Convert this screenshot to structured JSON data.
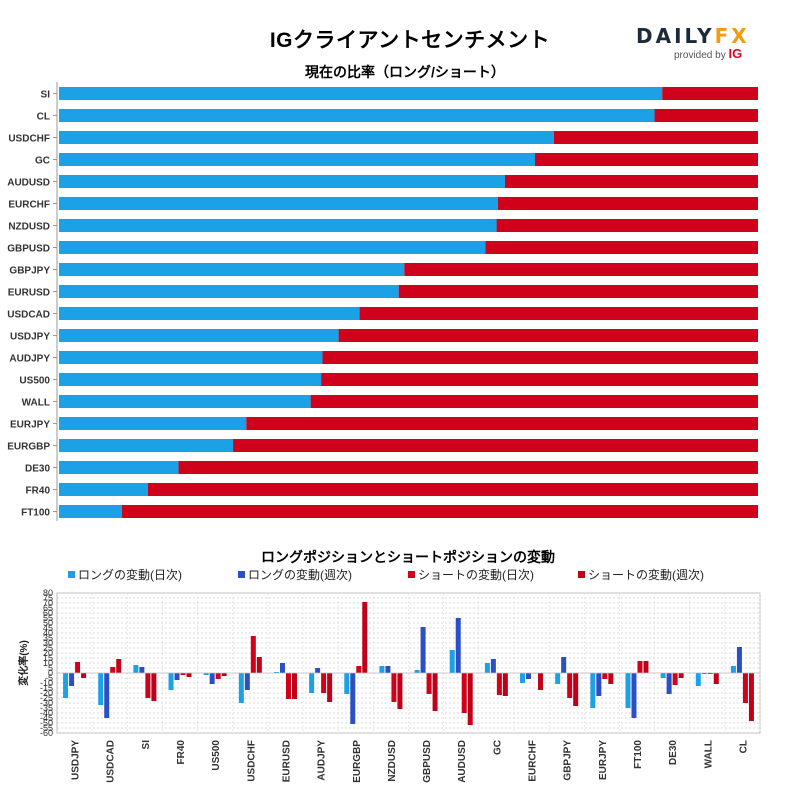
{
  "header": {
    "title": "IGクライアントセンチメント",
    "logo_word_a": "DAILY",
    "logo_word_b": "FX",
    "logo_provided": "provided by",
    "logo_ig": "IG"
  },
  "colors": {
    "long": "#1ca1e6",
    "short": "#d0021b",
    "long_weekly": "#2d4fc4",
    "short_weekly": "#c00018"
  },
  "chart_data": [
    {
      "type": "bar",
      "orientation": "horizontal-stacked",
      "title": "現在の比率（ロング/ショート）",
      "categories": [
        "SI",
        "CL",
        "USDCHF",
        "GC",
        "AUDUSD",
        "EURCHF",
        "NZDUSD",
        "GBPUSD",
        "GBPJPY",
        "EURUSD",
        "USDCAD",
        "USDJPY",
        "AUDJPY",
        "US500",
        "WALL",
        "EURJPY",
        "EURGBP",
        "DE30",
        "FR40",
        "FT100"
      ],
      "series": [
        {
          "name": "ロング",
          "values": [
            86.3,
            85.2,
            70.8,
            68.1,
            63.8,
            62.8,
            62.6,
            61.0,
            49.4,
            48.6,
            43.0,
            40.0,
            37.7,
            37.5,
            36.0,
            26.8,
            24.9,
            17.1,
            12.7,
            9.0
          ]
        },
        {
          "name": "ショート",
          "values": [
            13.7,
            14.8,
            29.2,
            31.9,
            36.2,
            37.2,
            37.4,
            39.0,
            50.6,
            51.4,
            57.0,
            60.0,
            62.3,
            62.5,
            64.0,
            73.2,
            75.1,
            82.9,
            87.3,
            91.0
          ]
        }
      ],
      "xlim": [
        0,
        100
      ]
    },
    {
      "type": "bar",
      "title": "ロングポジションとショートポジションの変動",
      "ylabel": "変化率(%)",
      "ylim": [
        -60,
        80
      ],
      "yticks": [
        80,
        75,
        70,
        65,
        60,
        55,
        50,
        45,
        40,
        35,
        30,
        25,
        20,
        15,
        10,
        5,
        0,
        -5,
        -10,
        -15,
        -20,
        -25,
        -30,
        -35,
        -40,
        -45,
        -50,
        -55,
        -60
      ],
      "categories": [
        "USDJPY",
        "USDCAD",
        "SI",
        "FR40",
        "US500",
        "USDCHF",
        "EURUSD",
        "AUDJPY",
        "EURGBP",
        "NZDUSD",
        "GBPUSD",
        "AUDUSD",
        "GC",
        "EURCHF",
        "GBPJPY",
        "EURJPY",
        "FT100",
        "DE30",
        "WALL",
        "CL"
      ],
      "series": [
        {
          "name": "ロングの変動(日次)",
          "values": [
            -25,
            -32,
            8,
            -17,
            -2,
            -30,
            1,
            -20,
            -21,
            7,
            3,
            23,
            10,
            -10,
            -11,
            -35,
            -35,
            -5,
            -13,
            7
          ]
        },
        {
          "name": "ロングの変動(週次)",
          "values": [
            -13,
            -45,
            6,
            -7,
            -11,
            -17,
            10,
            5,
            -51,
            7,
            46,
            55,
            14,
            -6,
            16,
            -23,
            -45,
            -21,
            -1,
            26
          ]
        },
        {
          "name": "ショートの変動(日次)",
          "values": [
            11,
            6,
            -25,
            -2,
            -6,
            37,
            -26,
            -20,
            7,
            -29,
            -21,
            -40,
            -22,
            0,
            -25,
            -6,
            12,
            -12,
            -1,
            -30
          ]
        },
        {
          "name": "ショートの変動(週次)",
          "values": [
            -5,
            14,
            -28,
            -4,
            -3,
            16,
            -26,
            -29,
            71,
            -36,
            -38,
            -52,
            -23,
            -17,
            -33,
            -11,
            12,
            -5,
            -11,
            -48
          ]
        }
      ]
    }
  ]
}
